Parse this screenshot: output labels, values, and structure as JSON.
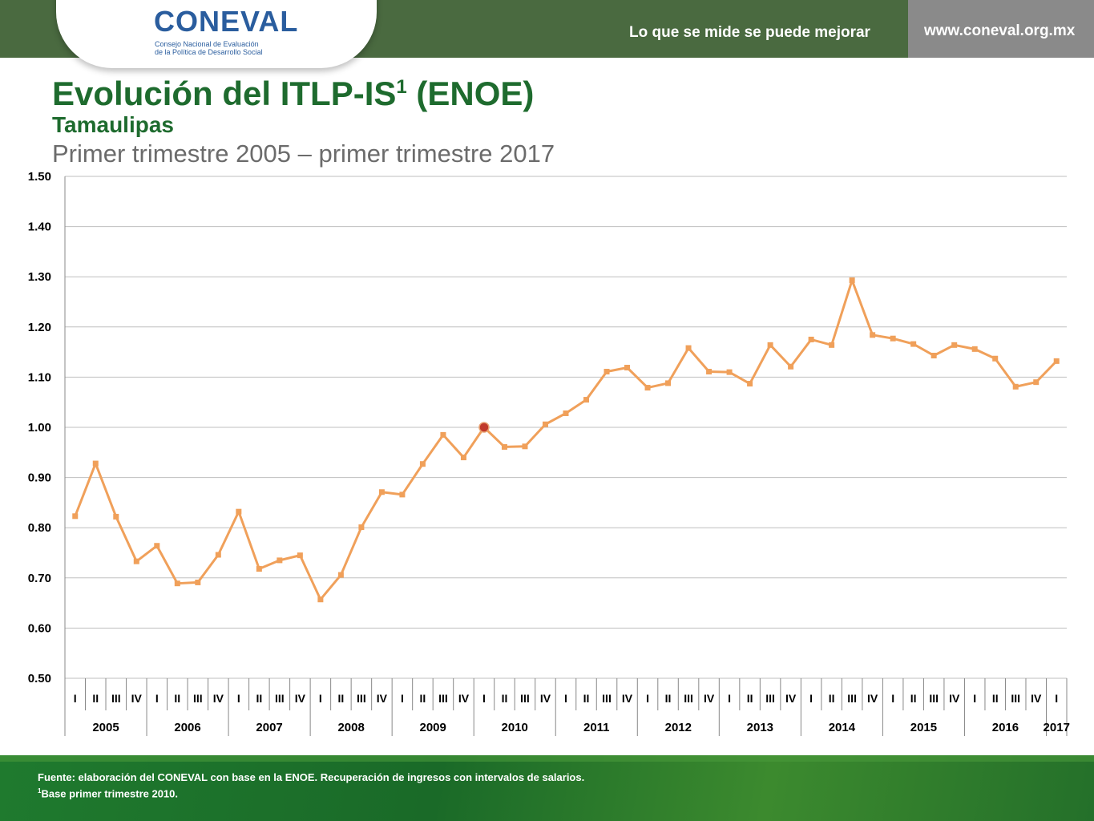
{
  "header": {
    "logo_word": "CONEVAL",
    "logo_line1": "Consejo Nacional de Evaluación",
    "logo_line2": "de la Política de Desarrollo Social",
    "slogan": "Lo que se mide se puede mejorar",
    "url": "www.coneval.org.mx"
  },
  "title": {
    "main": "Evolución del ITLP-IS",
    "sup": "1",
    "main_suffix": " (ENOE)"
  },
  "subtitle": "Tamaulipas",
  "period": "Primer trimestre 2005 – primer trimestre 2017",
  "footer": {
    "source": "Fuente: elaboración del CONEVAL con base en la ENOE. Recuperación de ingresos con intervalos de salarios.",
    "note_sup": "1",
    "note": "Base primer trimestre 2010."
  },
  "colors": {
    "line": "#f0a05a",
    "marker": "#f0a05a",
    "base_marker": "#c0392b",
    "grid": "#bfbfbf",
    "title": "#1e6b2e"
  },
  "chart_data": {
    "type": "line",
    "ylim": [
      0.5,
      1.5
    ],
    "yticks": [
      "0.50",
      "0.60",
      "0.70",
      "0.80",
      "0.90",
      "1.00",
      "1.10",
      "1.20",
      "1.30",
      "1.40",
      "1.50"
    ],
    "quarters": [
      "I",
      "II",
      "III",
      "IV",
      "I",
      "II",
      "III",
      "IV",
      "I",
      "II",
      "III",
      "IV",
      "I",
      "II",
      "III",
      "IV",
      "I",
      "II",
      "III",
      "IV",
      "I",
      "II",
      "III",
      "IV",
      "I",
      "II",
      "III",
      "IV",
      "I",
      "II",
      "III",
      "IV",
      "I",
      "II",
      "III",
      "IV",
      "I",
      "II",
      "III",
      "IV",
      "I",
      "II",
      "III",
      "IV",
      "I",
      "II",
      "III",
      "IV",
      "I"
    ],
    "years": [
      "2005",
      "2006",
      "2007",
      "2008",
      "2009",
      "2010",
      "2011",
      "2012",
      "2013",
      "2014",
      "2015",
      "2016",
      "2017"
    ],
    "values": [
      0.823,
      0.928,
      0.822,
      0.733,
      0.764,
      0.689,
      0.691,
      0.746,
      0.832,
      0.718,
      0.735,
      0.745,
      0.657,
      0.706,
      0.801,
      0.871,
      0.866,
      0.927,
      0.985,
      0.94,
      1.0,
      0.961,
      0.962,
      1.006,
      1.028,
      1.055,
      1.111,
      1.119,
      1.079,
      1.088,
      1.158,
      1.111,
      1.11,
      1.087,
      1.164,
      1.121,
      1.175,
      1.164,
      1.293,
      1.184,
      1.177,
      1.166,
      1.143,
      1.164,
      1.156,
      1.137,
      1.081,
      1.09,
      1.132
    ],
    "base_index": 20,
    "grid": true,
    "legend": "none"
  }
}
